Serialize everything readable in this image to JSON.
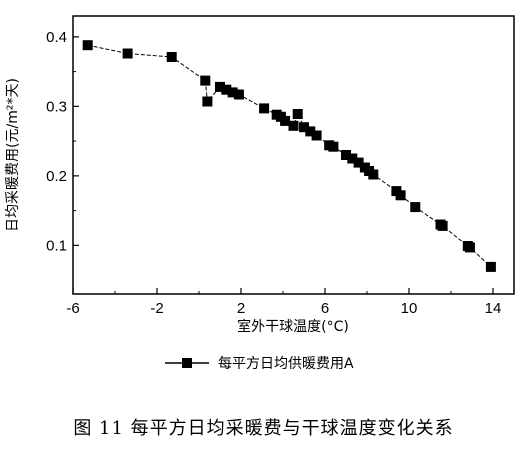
{
  "caption": "图 11  每平方日均采暖费与干球温度变化关系",
  "chart_data": {
    "type": "line",
    "xlabel": "室外干球温度(°C)",
    "ylabel": "日均采暖费用(元/m²*天)",
    "xlim": [
      -6,
      15
    ],
    "ylim": [
      0.03,
      0.43
    ],
    "xticks": [
      -6,
      -2,
      2,
      6,
      10,
      14
    ],
    "xtick_labels": [
      "-6",
      "-2",
      "2",
      "6",
      "10",
      "14"
    ],
    "yticks": [
      0.1,
      0.2,
      0.3,
      0.4
    ],
    "ytick_labels": [
      "0.1",
      "0.2",
      "0.3",
      "0.4"
    ],
    "grid": false,
    "legend_position": "below",
    "series": [
      {
        "name": "每平方日均供暖费用A",
        "marker": "square",
        "color": "#000000",
        "x": [
          -5.3,
          -3.4,
          -1.3,
          0.3,
          0.4,
          1.0,
          1.3,
          1.6,
          1.9,
          3.1,
          3.7,
          3.9,
          4.1,
          4.5,
          4.7,
          5.0,
          5.3,
          5.6,
          6.2,
          6.4,
          7.0,
          7.3,
          7.6,
          7.9,
          8.1,
          8.3,
          9.4,
          9.6,
          10.3,
          11.5,
          11.6,
          12.8,
          12.9,
          13.9
        ],
        "y": [
          0.388,
          0.376,
          0.371,
          0.337,
          0.307,
          0.328,
          0.324,
          0.32,
          0.317,
          0.297,
          0.288,
          0.285,
          0.279,
          0.272,
          0.289,
          0.27,
          0.264,
          0.258,
          0.244,
          0.242,
          0.23,
          0.225,
          0.219,
          0.212,
          0.207,
          0.202,
          0.178,
          0.172,
          0.155,
          0.13,
          0.128,
          0.099,
          0.097,
          0.069
        ]
      }
    ]
  }
}
